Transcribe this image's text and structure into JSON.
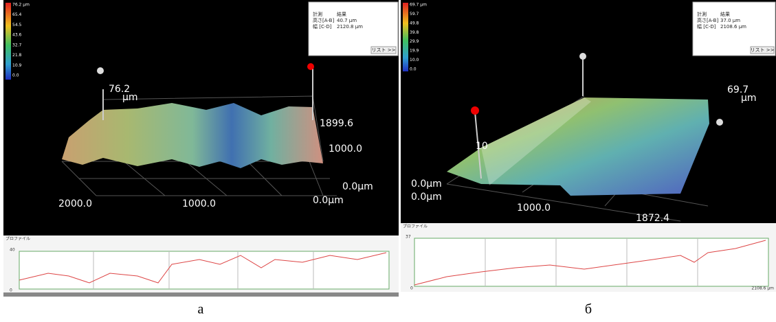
{
  "panels": [
    {
      "colorbar": [
        "76.2 µm",
        "65.4",
        "54.5",
        "43.6",
        "32.7",
        "21.8",
        "10.9",
        "0.0"
      ],
      "results": {
        "header": [
          "計測",
          "結果"
        ],
        "rows": [
          [
            "高さ[A-B]",
            "40.7 µm"
          ],
          [
            "幅 [C-D]",
            "2120.8 µm"
          ]
        ],
        "button": "リスト >>"
      },
      "axis_labels": {
        "top": "76.2",
        "unit": "µm",
        "right_top": "1899.6",
        "right_mid": "1000.0",
        "right_bottom": "0.0µm",
        "x_left": "2000.0",
        "x_mid": "1000.0",
        "x_right": "0.0µm"
      },
      "profile": {
        "title": "プロファイル",
        "y_top": "40",
        "y_bottom": "0"
      },
      "caption": "а"
    },
    {
      "colorbar": [
        "69.7 µm",
        "59.7",
        "49.8",
        "39.8",
        "29.9",
        "19.9",
        "10.0",
        "0.0"
      ],
      "results": {
        "header": [
          "計測",
          "結果"
        ],
        "rows": [
          [
            "高さ[A-B]",
            "37.0 µm"
          ],
          [
            "幅 [C-D]",
            "2108.6 µm"
          ]
        ],
        "button": "リスト >>"
      },
      "axis_labels": {
        "top": "69.7",
        "unit": "µm",
        "left_a": "0.0µm",
        "left_b": "0.0µm",
        "x_mid": "1000.0",
        "x_right": "1872.4",
        "left_mark": "10"
      },
      "profile": {
        "title": "プロファイル",
        "y_top": "37",
        "y_bottom": "0",
        "x_right": "2108.6 µm"
      },
      "caption": "б"
    }
  ]
}
